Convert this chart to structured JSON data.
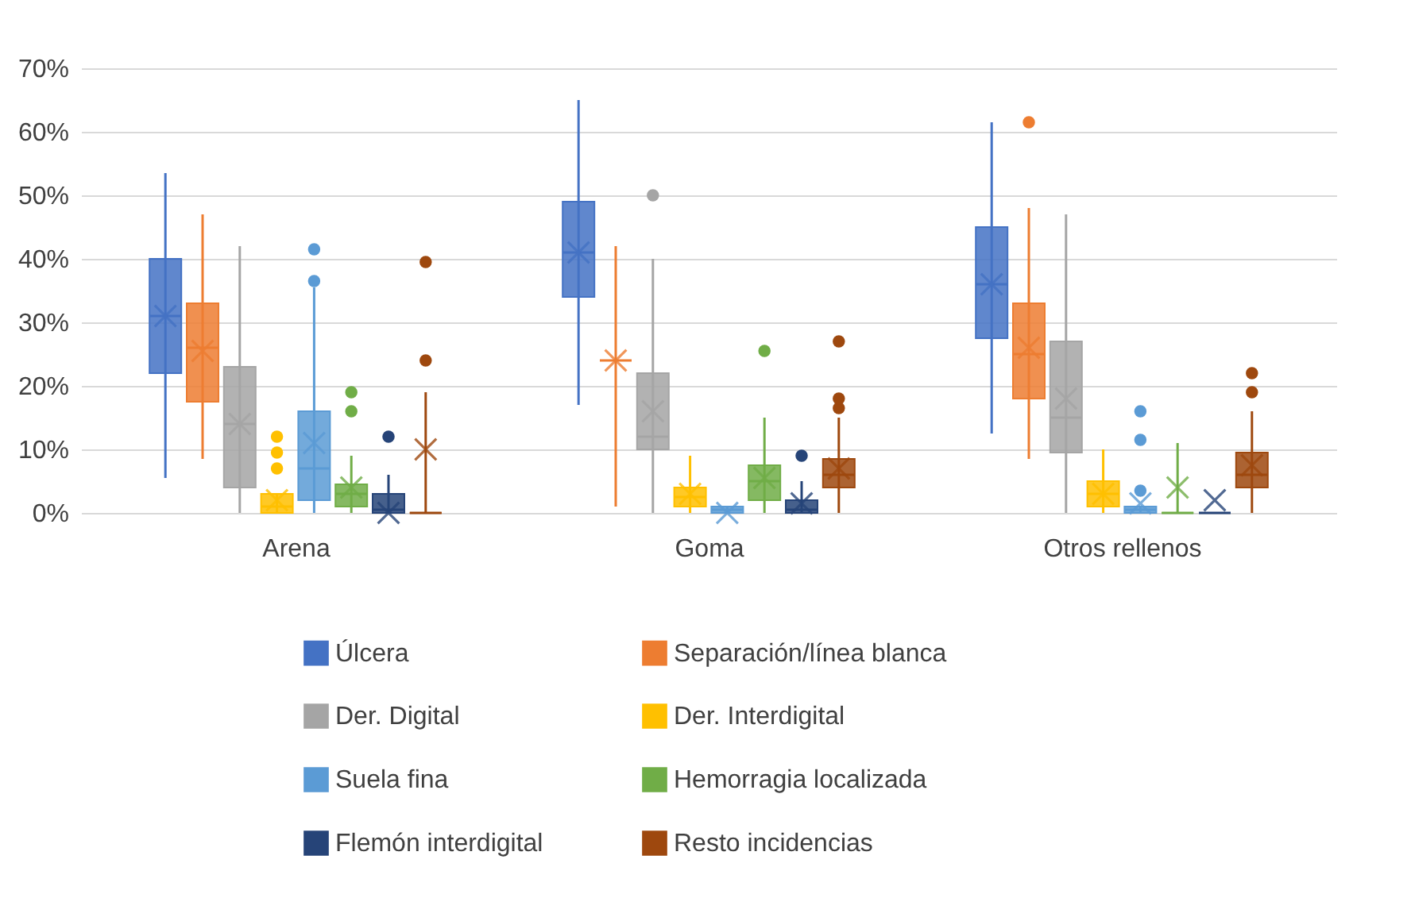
{
  "chart_data": {
    "type": "box",
    "categories": [
      "Arena",
      "Goma",
      "Otros rellenos"
    ],
    "ylim": [
      0,
      70
    ],
    "yticks": [
      {
        "value": 0,
        "label": "0%"
      },
      {
        "value": 10,
        "label": "10%"
      },
      {
        "value": 20,
        "label": "20%"
      },
      {
        "value": 30,
        "label": "30%"
      },
      {
        "value": 40,
        "label": "40%"
      },
      {
        "value": 50,
        "label": "50%"
      },
      {
        "value": 60,
        "label": "60%"
      },
      {
        "value": 70,
        "label": "70%"
      }
    ],
    "grid": "y",
    "legend": "bottom",
    "series": [
      {
        "name": "Úlcera",
        "color": "#4472c4",
        "boxes": [
          {
            "low": 5.5,
            "q1": 22,
            "median": 31,
            "q3": 40,
            "high": 53.5,
            "mean": 31
          },
          {
            "low": 17,
            "q1": 34,
            "median": 41,
            "q3": 49,
            "high": 65,
            "mean": 41
          },
          {
            "low": 12.5,
            "q1": 27.5,
            "median": 36,
            "q3": 45,
            "high": 61.5,
            "mean": 36
          }
        ]
      },
      {
        "name": "Separación/línea blanca",
        "color": "#ed7d31",
        "boxes": [
          {
            "low": 8.5,
            "q1": 17.5,
            "median": 26,
            "q3": 33,
            "high": 47,
            "mean": 25.5
          },
          {
            "low": 1,
            "q1": 24,
            "median": 24,
            "q3": 24,
            "high": 42,
            "mean": 24
          },
          {
            "low": 8.5,
            "q1": 18,
            "median": 25,
            "q3": 33,
            "high": 48,
            "mean": 26,
            "outliers": [
              61.5
            ]
          }
        ]
      },
      {
        "name": "Der. Digital",
        "color": "#a5a5a5",
        "boxes": [
          {
            "low": 0,
            "q1": 4,
            "median": 14,
            "q3": 23,
            "high": 42,
            "mean": 14
          },
          {
            "low": 0,
            "q1": 10,
            "median": 12,
            "q3": 22,
            "high": 40,
            "mean": 16,
            "outliers": [
              50
            ]
          },
          {
            "low": 0,
            "q1": 9.5,
            "median": 15,
            "q3": 27,
            "high": 47,
            "mean": 18
          }
        ]
      },
      {
        "name": "Der. Interdigital",
        "color": "#ffc000",
        "boxes": [
          {
            "low": 0,
            "q1": 0,
            "median": 1,
            "q3": 3,
            "high": 3,
            "mean": 2,
            "outliers": [
              7,
              9.5,
              12
            ]
          },
          {
            "low": 0,
            "q1": 1,
            "median": 2.5,
            "q3": 4,
            "high": 9,
            "mean": 3
          },
          {
            "low": 0,
            "q1": 1,
            "median": 3,
            "q3": 5,
            "high": 10,
            "mean": 3
          }
        ]
      },
      {
        "name": "Suela fina",
        "color": "#5b9bd5",
        "boxes": [
          {
            "low": 0,
            "q1": 2,
            "median": 7,
            "q3": 16,
            "high": 35.5,
            "mean": 11,
            "outliers": [
              36.5,
              41.5
            ]
          },
          {
            "low": 0,
            "q1": 0,
            "median": 0.5,
            "q3": 1,
            "high": 1,
            "mean": 0
          },
          {
            "low": 0,
            "q1": 0,
            "median": 0.5,
            "q3": 1,
            "high": 1,
            "mean": 1.5,
            "outliers": [
              3.5,
              11.5,
              16
            ]
          }
        ]
      },
      {
        "name": "Hemorragia localizada",
        "color": "#70ad47",
        "boxes": [
          {
            "low": 0,
            "q1": 1,
            "median": 3,
            "q3": 4.5,
            "high": 9,
            "mean": 4,
            "outliers": [
              16,
              19
            ]
          },
          {
            "low": 0,
            "q1": 2,
            "median": 5,
            "q3": 7.5,
            "high": 15,
            "mean": 5.5,
            "outliers": [
              25.5
            ]
          },
          {
            "low": 0,
            "q1": 0,
            "median": 0,
            "q3": 0,
            "high": 11,
            "mean": 4
          }
        ]
      },
      {
        "name": "Flemón interdigital",
        "color": "#264478",
        "boxes": [
          {
            "low": 0,
            "q1": 0,
            "median": 0.5,
            "q3": 3,
            "high": 6,
            "mean": 0,
            "outliers": [
              12
            ]
          },
          {
            "low": 0,
            "q1": 0,
            "median": 0.5,
            "q3": 2,
            "high": 5,
            "mean": 1.5,
            "outliers": [
              9
            ]
          },
          {
            "low": 0,
            "q1": 0,
            "median": 0,
            "q3": 0,
            "high": 0,
            "mean": 2
          }
        ]
      },
      {
        "name": "Resto incidencias",
        "color": "#9e480e",
        "boxes": [
          {
            "low": 0,
            "q1": 0,
            "median": 0,
            "q3": 0,
            "high": 19,
            "mean": 10,
            "outliers": [
              24,
              39.5
            ]
          },
          {
            "low": 0,
            "q1": 4,
            "median": 6,
            "q3": 8.5,
            "high": 15,
            "mean": 7,
            "outliers": [
              16.5,
              18,
              27
            ]
          },
          {
            "low": 0,
            "q1": 4,
            "median": 6,
            "q3": 9.5,
            "high": 16,
            "mean": 7.5,
            "outliers": [
              19,
              22
            ]
          }
        ]
      }
    ]
  }
}
